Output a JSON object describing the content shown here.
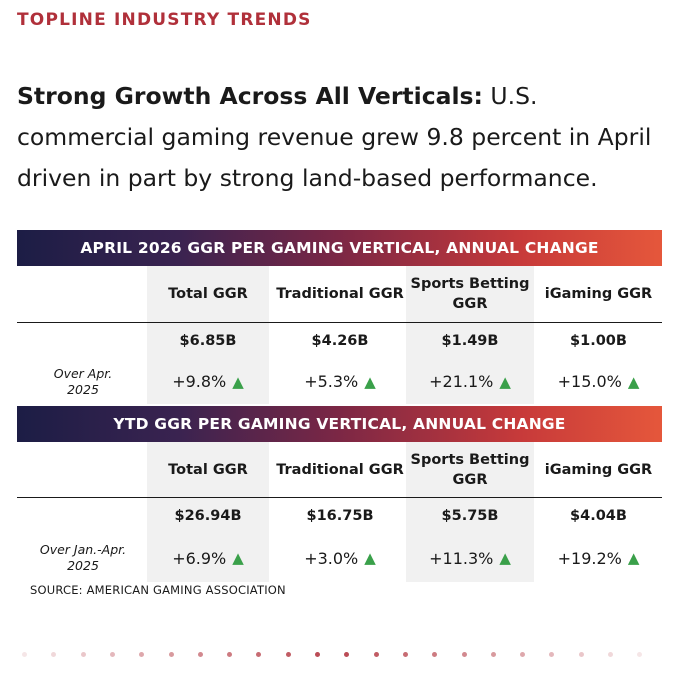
{
  "section_label": "TOPLINE INDUSTRY TRENDS",
  "headline": {
    "bold": "Strong Growth Across All Verticals:",
    "rest": " U.S. commercial gaming revenue grew 9.8 percent in April driven in part by strong land-based performance."
  },
  "tables": [
    {
      "title": "APRIL 2026 GGR PER GAMING VERTICAL, ANNUAL CHANGE",
      "columns": [
        "Total GGR",
        "Traditional GGR",
        "Sports Betting GGR",
        "iGaming GGR"
      ],
      "values": [
        "$6.85B",
        "$4.26B",
        "$1.49B",
        "$1.00B"
      ],
      "row_label": "Over Apr. 2025",
      "changes": [
        "+9.8%",
        "+5.3%",
        "+21.1%",
        "+15.0%"
      ]
    },
    {
      "title": "YTD GGR PER GAMING VERTICAL, ANNUAL CHANGE",
      "columns": [
        "Total GGR",
        "Traditional GGR",
        "Sports Betting GGR",
        "iGaming GGR"
      ],
      "values": [
        "$26.94B",
        "$16.75B",
        "$5.75B",
        "$4.04B"
      ],
      "row_label": "Over Jan.-Apr. 2025",
      "changes": [
        "+6.9%",
        "+3.0%",
        "+11.3%",
        "+19.2%"
      ]
    }
  ],
  "change_arrow": "▲",
  "source": "SOURCE: AMERICAN GAMING ASSOCIATION",
  "colors": {
    "accent": "#b0303a",
    "arrow": "#3aa04a",
    "band_start": "#1c1d45",
    "band_end": "#e5573b"
  }
}
